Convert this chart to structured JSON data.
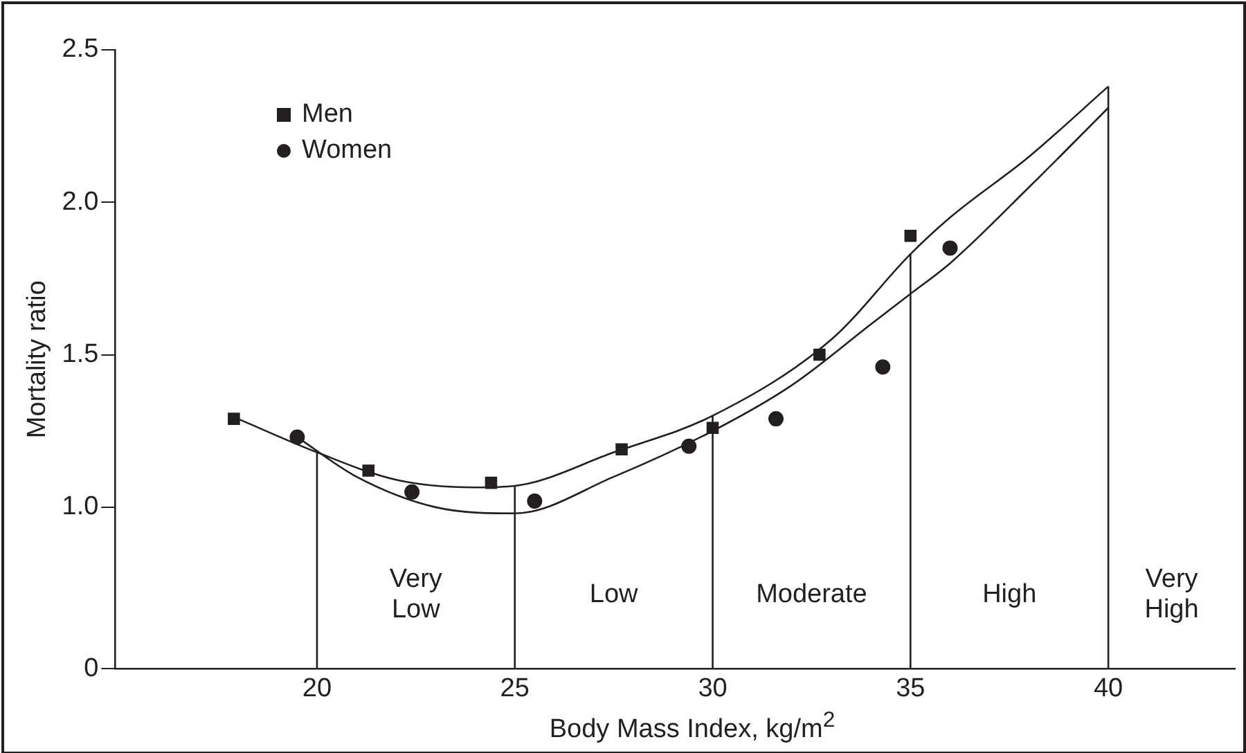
{
  "chart_data": {
    "type": "scatter",
    "xlabel": "Body Mass Index, kg/m$^{2}$",
    "ylabel": "Mortality ratio",
    "xlim": [
      14.9,
      43.2
    ],
    "xticks": [
      20,
      25,
      30,
      35,
      40
    ],
    "ylim": [
      0.47,
      2.5
    ],
    "yticks": [
      {
        "value": 0.47,
        "label": "0"
      },
      {
        "value": 1,
        "label": "1.0"
      },
      1.5,
      {
        "value": 2,
        "label": "2.0"
      },
      2.5
    ],
    "grid": false,
    "legend": "top left",
    "series": [
      {
        "name": "Men",
        "marker": "square",
        "color": "#231f20",
        "x": [
          17.9,
          21.3,
          24.4,
          27.7,
          30.0,
          32.7,
          35.0
        ],
        "values": [
          1.29,
          1.12,
          1.08,
          1.19,
          1.26,
          1.5,
          1.89
        ]
      },
      {
        "name": "Women",
        "marker": "circle",
        "color": "#231f20",
        "x": [
          19.5,
          22.4,
          25.5,
          29.4,
          31.6,
          34.3,
          36.0
        ],
        "values": [
          1.23,
          1.05,
          1.02,
          1.2,
          1.29,
          1.46,
          1.85
        ]
      },
      {
        "type": "line",
        "marker": "none",
        "color": "#231f20",
        "x": [
          18,
          20,
          22,
          24,
          25,
          27.5,
          30,
          33,
          35,
          36,
          38,
          40
        ],
        "values": [
          1.29,
          1.18,
          1.09,
          1.065,
          1.07,
          1.18,
          1.3,
          1.55,
          1.83,
          1.95,
          2.15,
          2.38
        ]
      },
      {
        "type": "line",
        "marker": "none",
        "color": "#231f20",
        "x": [
          19.5,
          21,
          23,
          25,
          27.5,
          30,
          32,
          34,
          35,
          36,
          38,
          40
        ],
        "values": [
          1.23,
          1.1,
          1.0,
          0.98,
          1.1,
          1.25,
          1.4,
          1.6,
          1.7,
          1.8,
          2.05,
          2.31
        ]
      }
    ],
    "ref_lines": [
      {
        "axis": "x",
        "value": 20
      },
      {
        "axis": "x",
        "value": 25
      },
      {
        "axis": "x",
        "value": 30
      },
      {
        "axis": "x",
        "value": 35
      },
      {
        "axis": "x",
        "value": 40
      }
    ],
    "annotations": [
      "Very Low",
      "Low",
      "Moderate",
      "High",
      "Very High"
    ]
  }
}
